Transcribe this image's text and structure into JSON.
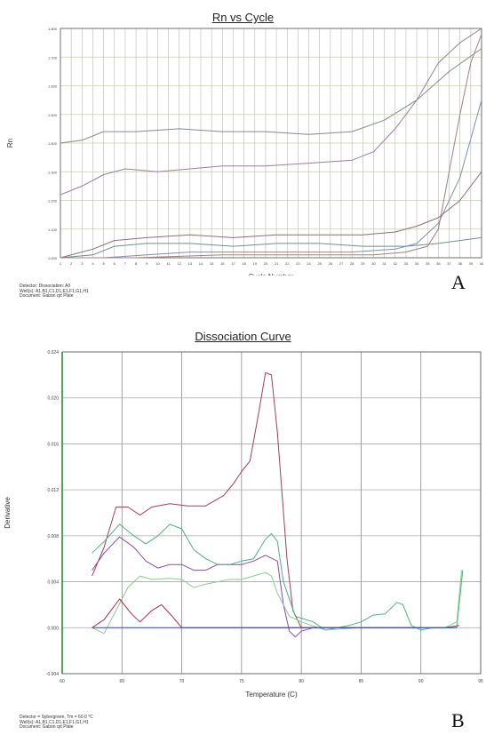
{
  "chart_data": [
    {
      "panel_label": "A",
      "type": "line",
      "title": "Rn vs Cycle",
      "xlabel": "Cycle Number",
      "ylabel": "Rn",
      "xlim": [
        1,
        40
      ],
      "ylim": [
        1.0,
        1.8
      ],
      "x_ticks": [
        "1",
        "2",
        "3",
        "4",
        "5",
        "6",
        "7",
        "8",
        "9",
        "10",
        "11",
        "12",
        "13",
        "14",
        "15",
        "16",
        "17",
        "18",
        "19",
        "20",
        "21",
        "22",
        "23",
        "24",
        "25",
        "26",
        "27",
        "28",
        "29",
        "30",
        "31",
        "32",
        "33",
        "34",
        "35",
        "36",
        "37",
        "38",
        "39",
        "40"
      ],
      "y_ticks": [
        "1.000",
        "1.100",
        "1.200",
        "1.300",
        "1.400",
        "1.500",
        "1.600",
        "1.700",
        "1.800"
      ],
      "grid": true,
      "footnote": [
        "Detector: Dissociation: All",
        "Well(s): A1,B1,C1,D1,E1,F1,G1,H1",
        "Document: Gabon qrt Plate"
      ],
      "series": [
        {
          "color": "#7f8f7f",
          "points": [
            [
              1,
              1.4
            ],
            [
              3,
              1.41
            ],
            [
              5,
              1.44
            ],
            [
              8,
              1.44
            ],
            [
              12,
              1.45
            ],
            [
              16,
              1.44
            ],
            [
              20,
              1.44
            ],
            [
              24,
              1.43
            ],
            [
              28,
              1.44
            ],
            [
              31,
              1.48
            ],
            [
              34,
              1.55
            ],
            [
              37,
              1.65
            ],
            [
              40,
              1.73
            ]
          ]
        },
        {
          "color": "#9a7f9a",
          "points": [
            [
              1,
              1.22
            ],
            [
              3,
              1.25
            ],
            [
              5,
              1.29
            ],
            [
              7,
              1.31
            ],
            [
              10,
              1.3
            ],
            [
              13,
              1.31
            ],
            [
              16,
              1.32
            ],
            [
              20,
              1.32
            ],
            [
              24,
              1.33
            ],
            [
              28,
              1.34
            ],
            [
              30,
              1.37
            ],
            [
              32,
              1.45
            ],
            [
              34,
              1.55
            ],
            [
              36,
              1.68
            ],
            [
              38,
              1.75
            ],
            [
              40,
              1.8
            ]
          ]
        },
        {
          "color": "#8f6f6f",
          "points": [
            [
              1,
              1.0
            ],
            [
              4,
              1.03
            ],
            [
              6,
              1.06
            ],
            [
              9,
              1.07
            ],
            [
              13,
              1.08
            ],
            [
              17,
              1.07
            ],
            [
              21,
              1.08
            ],
            [
              25,
              1.08
            ],
            [
              29,
              1.08
            ],
            [
              32,
              1.09
            ],
            [
              34,
              1.11
            ],
            [
              36,
              1.14
            ],
            [
              38,
              1.2
            ],
            [
              40,
              1.3
            ]
          ]
        },
        {
          "color": "#6f8f8f",
          "points": [
            [
              1,
              1.0
            ],
            [
              4,
              1.01
            ],
            [
              6,
              1.04
            ],
            [
              9,
              1.05
            ],
            [
              13,
              1.05
            ],
            [
              17,
              1.04
            ],
            [
              21,
              1.05
            ],
            [
              25,
              1.05
            ],
            [
              29,
              1.04
            ],
            [
              33,
              1.04
            ],
            [
              36,
              1.05
            ],
            [
              38,
              1.06
            ],
            [
              40,
              1.07
            ]
          ]
        },
        {
          "color": "#7f8faf",
          "points": [
            [
              1,
              1.0
            ],
            [
              5,
              1.0
            ],
            [
              9,
              1.01
            ],
            [
              13,
              1.02
            ],
            [
              18,
              1.02
            ],
            [
              23,
              1.02
            ],
            [
              28,
              1.02
            ],
            [
              32,
              1.03
            ],
            [
              34,
              1.05
            ],
            [
              36,
              1.12
            ],
            [
              38,
              1.28
            ],
            [
              40,
              1.55
            ]
          ]
        },
        {
          "color": "#a08080",
          "points": [
            [
              1,
              1.0
            ],
            [
              8,
              1.0
            ],
            [
              16,
              1.01
            ],
            [
              24,
              1.01
            ],
            [
              30,
              1.01
            ],
            [
              33,
              1.02
            ],
            [
              35,
              1.04
            ],
            [
              36,
              1.1
            ],
            [
              37,
              1.3
            ],
            [
              38,
              1.5
            ],
            [
              39,
              1.68
            ],
            [
              40,
              1.78
            ]
          ]
        }
      ]
    },
    {
      "panel_label": "B",
      "type": "line",
      "title": "Dissociation Curve",
      "xlabel": "Temperature (C)",
      "ylabel": "Derivative",
      "xlim": [
        60,
        95
      ],
      "ylim": [
        -0.004,
        0.024
      ],
      "x_ticks": [
        "60",
        "65",
        "70",
        "75",
        "80",
        "85",
        "90",
        "95"
      ],
      "y_ticks": [
        "-0.004",
        "0.000",
        "0.004",
        "0.008",
        "0.012",
        "0.016",
        "0.020",
        "0.024"
      ],
      "grid": true,
      "footnote": [
        "Detector = Sybergreen, Tm = 60.0 °C",
        "Well(s): A1,B1,C1,D1,E1,F1,G1,H1",
        "Document: Gabon qrt Plate"
      ],
      "series": [
        {
          "color": "#a04060",
          "points": [
            [
              62.5,
              0.0045
            ],
            [
              63.5,
              0.007
            ],
            [
              64.5,
              0.0105
            ],
            [
              65.5,
              0.0105
            ],
            [
              66.5,
              0.0098
            ],
            [
              67.5,
              0.0105
            ],
            [
              69,
              0.0108
            ],
            [
              70.5,
              0.0106
            ],
            [
              72,
              0.0106
            ],
            [
              73.5,
              0.0115
            ],
            [
              74.3,
              0.0125
            ],
            [
              75,
              0.0136
            ],
            [
              75.7,
              0.0145
            ],
            [
              76.4,
              0.0185
            ],
            [
              77,
              0.0222
            ],
            [
              77.5,
              0.022
            ],
            [
              78,
              0.017
            ],
            [
              78.4,
              0.0115
            ],
            [
              78.8,
              0.006
            ],
            [
              79.3,
              0.0015
            ],
            [
              80,
              0.0
            ],
            [
              82,
              0.0
            ],
            [
              85,
              0.0
            ],
            [
              88,
              0.0
            ],
            [
              90,
              0.0
            ]
          ]
        },
        {
          "color": "#8a4aa0",
          "points": [
            [
              62.5,
              0.005
            ],
            [
              63.5,
              0.0065
            ],
            [
              64.8,
              0.0079
            ],
            [
              66,
              0.007
            ],
            [
              67,
              0.0058
            ],
            [
              68,
              0.0052
            ],
            [
              69,
              0.0055
            ],
            [
              70,
              0.0055
            ],
            [
              71,
              0.005
            ],
            [
              72,
              0.005
            ],
            [
              73,
              0.0055
            ],
            [
              74,
              0.0055
            ],
            [
              75,
              0.0055
            ],
            [
              76,
              0.0058
            ],
            [
              77,
              0.0063
            ],
            [
              78,
              0.0058
            ],
            [
              78.5,
              0.002
            ],
            [
              79,
              -0.0003
            ],
            [
              79.5,
              -0.0008
            ],
            [
              80,
              -0.0003
            ],
            [
              81,
              0.0
            ],
            [
              85,
              0.0
            ],
            [
              90,
              0.0
            ]
          ]
        },
        {
          "color": "#50b080",
          "points": [
            [
              62.5,
              0.0065
            ],
            [
              63.5,
              0.0075
            ],
            [
              64.8,
              0.009
            ],
            [
              66,
              0.008
            ],
            [
              67,
              0.0073
            ],
            [
              68,
              0.008
            ],
            [
              69,
              0.009
            ],
            [
              70,
              0.0086
            ],
            [
              71,
              0.0068
            ],
            [
              72,
              0.006
            ],
            [
              73,
              0.0055
            ],
            [
              74,
              0.0055
            ],
            [
              75,
              0.0058
            ],
            [
              76,
              0.006
            ],
            [
              77,
              0.0077
            ],
            [
              77.5,
              0.0082
            ],
            [
              78,
              0.0075
            ],
            [
              78.5,
              0.004
            ],
            [
              79.5,
              0.001
            ],
            [
              81,
              0.0005
            ],
            [
              82,
              -0.0002
            ],
            [
              84,
              0.0002
            ],
            [
              85,
              0.0005
            ],
            [
              86,
              0.0011
            ],
            [
              87,
              0.0012
            ],
            [
              88,
              0.0022
            ],
            [
              88.5,
              0.002
            ],
            [
              89.2,
              0.0002
            ],
            [
              90,
              -0.0002
            ],
            [
              91,
              0.0
            ],
            [
              92,
              0.0
            ],
            [
              93,
              0.0
            ],
            [
              93.5,
              0.005
            ]
          ]
        },
        {
          "color": "#90c890",
          "points": [
            [
              62.5,
              0.0
            ],
            [
              63.5,
              -0.0005
            ],
            [
              64.5,
              0.0015
            ],
            [
              65.5,
              0.0035
            ],
            [
              66.5,
              0.0045
            ],
            [
              67.5,
              0.0042
            ],
            [
              69,
              0.0043
            ],
            [
              70,
              0.0042
            ],
            [
              71,
              0.0035
            ],
            [
              72,
              0.0038
            ],
            [
              73,
              0.004
            ],
            [
              74,
              0.0042
            ],
            [
              75,
              0.0042
            ],
            [
              76,
              0.0045
            ],
            [
              77,
              0.0048
            ],
            [
              77.5,
              0.0045
            ],
            [
              78,
              0.003
            ],
            [
              79,
              0.001
            ],
            [
              80,
              0.0005
            ],
            [
              82,
              -0.0002
            ],
            [
              85,
              0.0
            ],
            [
              88,
              0.0
            ],
            [
              90,
              0.0
            ],
            [
              92,
              0.0
            ],
            [
              93,
              0.0005
            ],
            [
              93.4,
              0.005
            ]
          ]
        },
        {
          "color": "#a03050",
          "points": [
            [
              62.5,
              0.0
            ],
            [
              63.5,
              0.0007
            ],
            [
              64.8,
              0.0025
            ],
            [
              65.8,
              0.0012
            ],
            [
              66.5,
              0.0005
            ],
            [
              67.5,
              0.0015
            ],
            [
              68.3,
              0.002
            ],
            [
              69.2,
              0.001
            ],
            [
              70,
              0.0
            ],
            [
              72,
              0.0
            ],
            [
              75,
              0.0
            ],
            [
              78,
              0.0
            ],
            [
              80,
              0.0
            ],
            [
              82,
              0.0
            ],
            [
              85,
              0.0
            ],
            [
              88,
              0.0
            ],
            [
              92,
              0.0
            ],
            [
              93.2,
              0.0002
            ]
          ]
        },
        {
          "color": "#3050a0",
          "points": [
            [
              62.5,
              0.0
            ],
            [
              68,
              0.0
            ],
            [
              75,
              0.0
            ],
            [
              80,
              0.0
            ],
            [
              85,
              0.0
            ],
            [
              90,
              0.0
            ],
            [
              93,
              0.0
            ]
          ]
        }
      ]
    }
  ]
}
